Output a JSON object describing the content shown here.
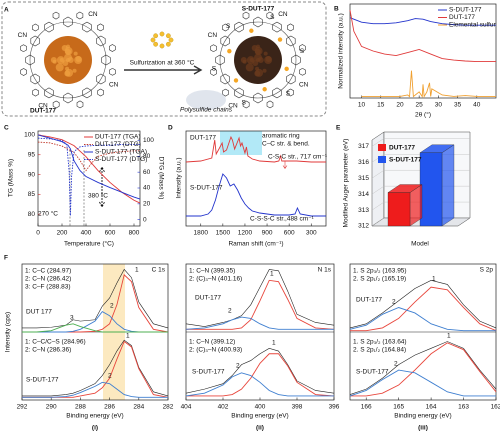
{
  "diagram": {
    "panel": "A",
    "left_label": "DUT-177",
    "right_label": "S-DUT-177",
    "arrow_label": "Sulfurization at 360 °C",
    "chain_label": "Polysulfide chains",
    "nitrile_label": "CN",
    "sulfur_label": "S"
  },
  "chart_data": [
    {
      "type": "line",
      "panel": "B",
      "xlabel": "2θ (°)",
      "ylabel": "Normalized intensity (a.u.)",
      "xlim": [
        7,
        45
      ],
      "xticks": [
        10,
        15,
        20,
        25,
        30,
        35,
        40
      ],
      "ylim": [
        0,
        3.1
      ],
      "legend": "upper right",
      "series": [
        {
          "name": "S-DUT-177",
          "color": "#2233cc",
          "x": [
            7,
            10,
            13,
            16,
            19,
            22,
            24,
            26,
            28,
            31,
            34,
            37,
            40,
            43,
            45
          ],
          "values": [
            2.65,
            2.5,
            2.45,
            2.45,
            2.48,
            2.55,
            2.62,
            2.6,
            2.52,
            2.45,
            2.42,
            2.4,
            2.4,
            2.4,
            2.4
          ]
        },
        {
          "name": "DUT-177",
          "color": "#e03a3a",
          "x": [
            7,
            8,
            10,
            13,
            16,
            19,
            22,
            25,
            28,
            31,
            34,
            37,
            40,
            43,
            45
          ],
          "values": [
            2.9,
            2.2,
            1.7,
            1.55,
            1.45,
            1.4,
            1.5,
            1.6,
            1.45,
            1.3,
            1.25,
            1.22,
            1.2,
            1.2,
            1.2
          ]
        },
        {
          "name": "Elemental sulfur",
          "color": "#f0a030",
          "x": [
            10,
            15,
            20,
            22,
            22.5,
            23,
            23.5,
            25,
            25.8,
            26,
            26.3,
            27,
            27.7,
            28,
            28.3,
            31,
            34,
            37,
            40,
            42,
            45
          ],
          "values": [
            0.05,
            0.05,
            0.05,
            0.1,
            0.05,
            0.9,
            0.05,
            0.2,
            0.05,
            0.45,
            0.05,
            0.2,
            0.5,
            0.05,
            0.3,
            0.1,
            0.05,
            0.08,
            0.05,
            0.05,
            0.05
          ]
        }
      ]
    },
    {
      "type": "line",
      "panel": "C",
      "xlabel": "Temperature (°C)",
      "ylabel": "TG (Mass %)",
      "y2label": "DTG (Mass %)",
      "xlim": [
        0,
        850
      ],
      "xticks": [
        0,
        200,
        400,
        600,
        800
      ],
      "ylim": [
        77,
        101
      ],
      "yticks": [
        80,
        85,
        90,
        95,
        100
      ],
      "y2lim": [
        -8,
        112
      ],
      "y2ticks": [
        0,
        20,
        40,
        60,
        80,
        100
      ],
      "ycolor": "#d62728",
      "y2color": "#2233cc",
      "legend": "upper right",
      "annotations": [
        "270 °C",
        "380 °C"
      ],
      "series": [
        {
          "name": "DUT-177 (TGA)",
          "color": "#e03a3a",
          "x": [
            0,
            100,
            200,
            300,
            400,
            500,
            600,
            700,
            800,
            850
          ],
          "values": [
            100,
            99.5,
            98.8,
            97.3,
            94.5,
            91,
            88,
            85.5,
            83.5,
            82.8
          ]
        },
        {
          "name": "DUT-177 (DTG)",
          "color": "#c0392b",
          "style": "dotted",
          "axis": "y2",
          "x": [
            0,
            100,
            200,
            300,
            350,
            400,
            450,
            500,
            550,
            600,
            700,
            800,
            850
          ],
          "values": [
            98,
            97,
            93,
            85,
            75,
            62,
            72,
            80,
            82,
            84,
            86,
            87,
            87
          ]
        },
        {
          "name": "S-DUT-177 (TGA)",
          "color": "#2233cc",
          "x": [
            0,
            100,
            200,
            250,
            270,
            300,
            350,
            400,
            500,
            600,
            700,
            800,
            850
          ],
          "values": [
            100,
            99.2,
            98.3,
            97.4,
            96.5,
            93.5,
            91,
            89.5,
            88,
            86.7,
            85.5,
            84.3,
            83.8
          ]
        },
        {
          "name": "S-DUT-177 (DTG)",
          "color": "#2233cc",
          "style": "dotted",
          "axis": "y2",
          "x": [
            0,
            100,
            200,
            240,
            260,
            270,
            280,
            300,
            350,
            400,
            500,
            600,
            700,
            800,
            850
          ],
          "values": [
            103,
            102,
            100,
            95,
            60,
            5,
            55,
            86,
            92,
            93,
            94,
            94,
            95,
            95,
            95
          ]
        }
      ]
    },
    {
      "type": "line",
      "panel": "D",
      "xlabel": "Raman shift (cm⁻¹)",
      "ylabel": "Intensity (a.u.)",
      "xlim": [
        2000,
        100
      ],
      "xticks": [
        1800,
        1500,
        1200,
        900,
        600,
        300
      ],
      "ylim": [
        1,
        10.5
      ],
      "annotations": [
        "DUT-177",
        "aromatic ring",
        "C–C str. & bend.",
        "C-S-C str., 717 cm⁻¹",
        "S-DUT-177",
        "C-S-S-C str.,488 cm⁻¹"
      ],
      "series": [
        {
          "color": "#e03a3a",
          "x": [
            2000,
            1800,
            1650,
            1610,
            1590,
            1560,
            1510,
            1490,
            1450,
            1390,
            1370,
            1340,
            1280,
            1260,
            1240,
            1200,
            1180,
            1160,
            1100,
            1000,
            800,
            740,
            717,
            700,
            500,
            300,
            100
          ],
          "values": [
            7.4,
            7.5,
            7.8,
            9.6,
            8.2,
            8.6,
            9.3,
            8.4,
            8.6,
            9.9,
            9.6,
            8.7,
            9.8,
            9.0,
            9.3,
            8.3,
            8.9,
            8.0,
            7.7,
            7.5,
            7.4,
            7.5,
            8.0,
            7.5,
            7.5,
            7.4,
            7.4
          ]
        },
        {
          "color": "#2233cc",
          "x": [
            2000,
            1800,
            1700,
            1650,
            1600,
            1550,
            1500,
            1450,
            1400,
            1350,
            1300,
            1250,
            1200,
            1150,
            1100,
            1000,
            800,
            600,
            520,
            488,
            450,
            300,
            100
          ],
          "values": [
            2.0,
            2.0,
            2.2,
            2.6,
            3.6,
            5.0,
            6.2,
            5.8,
            5.0,
            5.2,
            4.6,
            3.8,
            3.2,
            2.8,
            2.5,
            2.3,
            2.1,
            2.1,
            2.2,
            2.8,
            2.2,
            2.0,
            2.0
          ]
        }
      ]
    },
    {
      "type": "bar",
      "panel": "E",
      "xlabel": "Model",
      "ylabel": "Modified Auger parameter (eV)",
      "categories": [
        "DUT-177",
        "S-DUT-177"
      ],
      "values": [
        314.1,
        316.6
      ],
      "colors": [
        "#ee1c1c",
        "#2255ee"
      ],
      "ylim": [
        312,
        317.4
      ],
      "yticks": [
        312,
        313,
        314,
        315,
        316,
        317
      ],
      "legend": "upper left"
    },
    {
      "type": "line",
      "panel": "F",
      "subpanel": "(i)",
      "title": "C 1s",
      "xlabel": "Binding energy (eV)",
      "ylabel": "Intensity (cps)",
      "xlim": [
        292,
        282
      ],
      "xticks": [
        292,
        290,
        288,
        286,
        284,
        282
      ],
      "ylim": [
        0,
        10
      ],
      "x": [
        292,
        291,
        290,
        289,
        288.5,
        288,
        287,
        286.5,
        286,
        285.5,
        285,
        284.5,
        284,
        283,
        282
      ],
      "annotations": [
        "1: C–C (284.97)",
        "2: C–N (286.42)",
        "3: C–F (288.83)",
        "DUT 177",
        "1",
        "2",
        "3",
        "1: C–C/C–S (284.96)",
        "2: C–N (286.36)",
        "S-DUT-177",
        "1",
        "2"
      ],
      "series": [
        {
          "color": "#222222",
          "values": [
            5.3,
            5.3,
            5.35,
            5.5,
            5.9,
            5.8,
            5.9,
            6.9,
            7.5,
            8.6,
            9.6,
            9,
            7.2,
            5.6,
            5.3
          ]
        },
        {
          "color": "#e8463c",
          "values": [
            5,
            5,
            5,
            5,
            5,
            5,
            5.05,
            5.2,
            5.6,
            7,
            9.2,
            8.7,
            6.8,
            5.2,
            5
          ]
        },
        {
          "color": "#3f7fd0",
          "values": [
            5,
            5,
            5,
            5,
            5.05,
            5.2,
            5.8,
            6.5,
            6.2,
            5.6,
            5.2,
            5.05,
            5,
            5,
            5
          ]
        },
        {
          "color": "#4caf50",
          "values": [
            5,
            5,
            5.1,
            5.5,
            5.6,
            5.4,
            5.1,
            5,
            5,
            5,
            5,
            5,
            5,
            5,
            5
          ]
        },
        {
          "color": "#222222",
          "values": [
            0.3,
            0.3,
            0.3,
            0.4,
            0.5,
            0.7,
            1.2,
            1.8,
            2.6,
            3.6,
            4.4,
            4,
            2.4,
            0.6,
            0.3
          ]
        },
        {
          "color": "#e8463c",
          "values": [
            0.2,
            0.2,
            0.2,
            0.2,
            0.2,
            0.3,
            0.5,
            0.9,
            1.6,
            3,
            4.3,
            3.9,
            2.3,
            0.4,
            0.2
          ]
        },
        {
          "color": "#3f7fd0",
          "values": [
            0.2,
            0.2,
            0.2,
            0.25,
            0.35,
            0.55,
            1,
            1.3,
            1.2,
            0.8,
            0.4,
            0.25,
            0.2,
            0.2,
            0.2
          ]
        }
      ]
    },
    {
      "type": "line",
      "subpanel": "(ii)",
      "title": "N 1s",
      "xlabel": "Binding energy (eV)",
      "xlim": [
        404,
        396
      ],
      "xticks": [
        404,
        402,
        400,
        398,
        396
      ],
      "ylim": [
        0,
        10
      ],
      "x": [
        404,
        403,
        402,
        401.5,
        401,
        400.5,
        400,
        399.5,
        399,
        398.5,
        398,
        397,
        396
      ],
      "annotations": [
        "1: C–N (399.35)",
        "2: (C)₃–N (401.16)",
        "DUT-177",
        "1",
        "2",
        "1: C–N (399.12)",
        "2: (C)₃–N (400.93)",
        "S-DUT-177",
        "1",
        "2"
      ],
      "series": [
        {
          "color": "#222222",
          "values": [
            5.6,
            5.4,
            5.7,
            5.9,
            6.2,
            7,
            8.3,
            9.6,
            9.5,
            8,
            6.3,
            5.7,
            5.5
          ]
        },
        {
          "color": "#e8463c",
          "values": [
            5.2,
            5.2,
            5.2,
            5.2,
            5.3,
            5.9,
            7.3,
            8.8,
            8.7,
            7.4,
            6,
            5.3,
            5.2
          ]
        },
        {
          "color": "#3f7fd0",
          "values": [
            5.2,
            5.3,
            5.6,
            5.9,
            6.1,
            6,
            5.6,
            5.3,
            5.2,
            5.2,
            5.2,
            5.2,
            5.2
          ]
        },
        {
          "color": "#222222",
          "values": [
            0.5,
            0.8,
            1.2,
            1.8,
            2.6,
            2.9,
            3.4,
            3.8,
            3.6,
            2.6,
            1.4,
            0.7,
            0.5
          ]
        },
        {
          "color": "#e8463c",
          "values": [
            0.3,
            0.3,
            0.3,
            0.4,
            0.8,
            1.6,
            2.7,
            3.4,
            3.4,
            2.5,
            1.3,
            0.4,
            0.3
          ]
        },
        {
          "color": "#3f7fd0",
          "values": [
            0.3,
            0.5,
            1.1,
            1.7,
            2,
            1.8,
            1.3,
            0.7,
            0.4,
            0.3,
            0.3,
            0.3,
            0.3
          ]
        }
      ]
    },
    {
      "type": "line",
      "subpanel": "(iii)",
      "title": "S 2p",
      "xlabel": "Binding energy (eV)",
      "xlim": [
        166.5,
        162
      ],
      "xticks": [
        166,
        165,
        164,
        163,
        162
      ],
      "ylim": [
        0,
        10
      ],
      "x": [
        166.5,
        166,
        165.5,
        165,
        164.5,
        164,
        163.5,
        163,
        162.5,
        162
      ],
      "annotations": [
        "1. S 2p₃/₂ (163.95)",
        "2. S 2p₁/₂ (165.19)",
        "DUT-177",
        "1",
        "2",
        "1. S 2p₃/₂ (163.64)",
        "2. S 2p₁/₂ (164.84)",
        "S-DUT-177",
        "1",
        "2"
      ],
      "series": [
        {
          "color": "#222222",
          "values": [
            5.3,
            5.6,
            6.4,
            7.3,
            8.2,
            8.8,
            8.5,
            7,
            5.8,
            5.3
          ]
        },
        {
          "color": "#e8463c",
          "values": [
            5.1,
            5.1,
            5.3,
            6,
            7.2,
            8.3,
            8.1,
            6.8,
            5.6,
            5.1
          ]
        },
        {
          "color": "#3f7fd0",
          "values": [
            5.2,
            5.5,
            6.3,
            6.8,
            6.4,
            5.6,
            5.2,
            5.1,
            5.1,
            5.1
          ]
        },
        {
          "color": "#222222",
          "values": [
            0.4,
            0.8,
            1.6,
            2.6,
            3.3,
            3.8,
            4.3,
            3.8,
            2.2,
            0.8
          ]
        },
        {
          "color": "#e8463c",
          "values": [
            0.3,
            0.3,
            0.5,
            1.1,
            2.2,
            3.4,
            4.2,
            3.7,
            2.1,
            0.6
          ]
        },
        {
          "color": "#3f7fd0",
          "values": [
            0.3,
            0.7,
            1.5,
            2.2,
            2,
            1.3,
            0.6,
            0.3,
            0.3,
            0.3
          ]
        }
      ]
    }
  ]
}
